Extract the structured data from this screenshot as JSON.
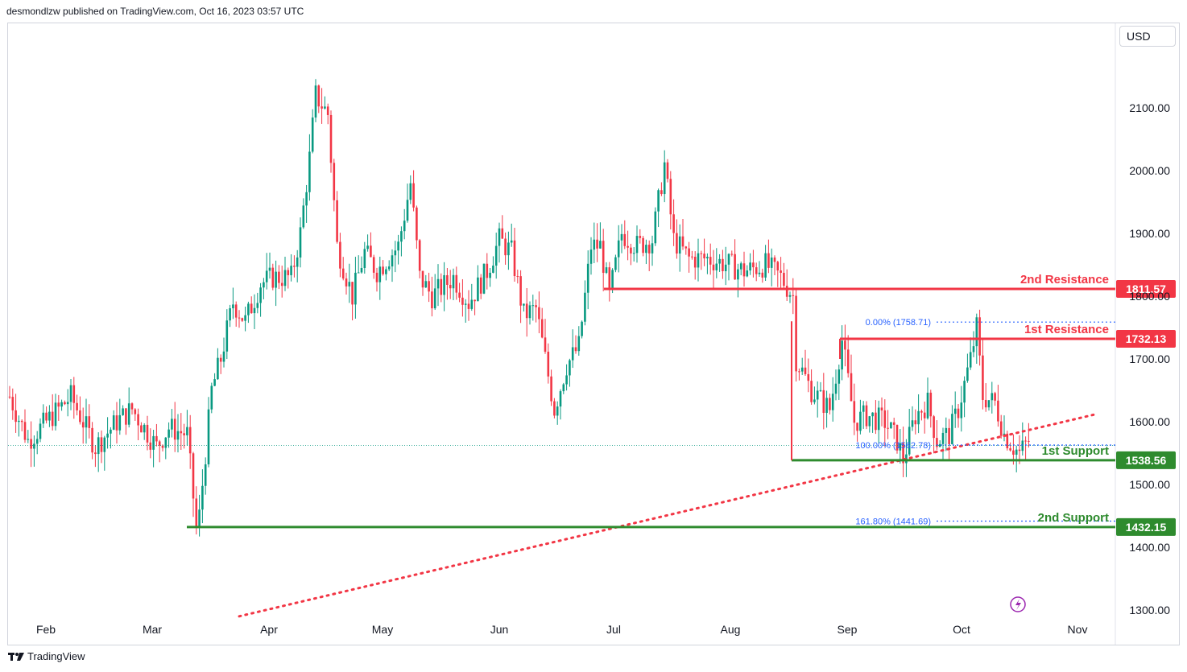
{
  "header": {
    "published": "desmondlzw published on TradingView.com, Oct 16, 2023 03:57 UTC"
  },
  "currency": "USD",
  "footer": {
    "brand": "TradingView"
  },
  "colors": {
    "up": "#089981",
    "down": "#f23645",
    "resistance": "#f23645",
    "support": "#2e8b2e",
    "fib": "#2962ff",
    "trend": "#f23645"
  },
  "chart_data": {
    "type": "candlestick",
    "title": "",
    "ylim": [
      1300,
      2200
    ],
    "y_ticks": [
      1300,
      1400,
      1500,
      1600,
      1700,
      1800,
      1900,
      2000,
      2100
    ],
    "y_tick_labels": [
      "1300.00",
      "1400.00",
      "1500.00",
      "1600.00",
      "1700.00",
      "1800.00",
      "1900.00",
      "2000.00",
      "2100.00"
    ],
    "x_labels": [
      "Feb",
      "Mar",
      "Apr",
      "May",
      "Jun",
      "Jul",
      "Aug",
      "Sep",
      "Oct",
      "Nov"
    ],
    "close_path": [
      [
        0,
        1640
      ],
      [
        6,
        1570
      ],
      [
        12,
        1600
      ],
      [
        20,
        1640
      ],
      [
        28,
        1560
      ],
      [
        35,
        1600
      ],
      [
        40,
        1620
      ],
      [
        48,
        1560
      ],
      [
        52,
        1590
      ],
      [
        58,
        1580
      ],
      [
        61,
        1430
      ],
      [
        62,
        1450
      ],
      [
        66,
        1650
      ],
      [
        69,
        1700
      ],
      [
        73,
        1790
      ],
      [
        77,
        1760
      ],
      [
        82,
        1820
      ],
      [
        86,
        1830
      ],
      [
        92,
        1830
      ],
      [
        95,
        1900
      ],
      [
        98,
        2020
      ],
      [
        100,
        2120
      ],
      [
        104,
        2090
      ],
      [
        107,
        1880
      ],
      [
        112,
        1800
      ],
      [
        116,
        1870
      ],
      [
        120,
        1840
      ],
      [
        127,
        1880
      ],
      [
        131,
        1980
      ],
      [
        134,
        1830
      ],
      [
        138,
        1800
      ],
      [
        145,
        1830
      ],
      [
        150,
        1790
      ],
      [
        156,
        1840
      ],
      [
        160,
        1890
      ],
      [
        164,
        1870
      ],
      [
        168,
        1770
      ],
      [
        172,
        1780
      ],
      [
        178,
        1620
      ],
      [
        182,
        1690
      ],
      [
        186,
        1720
      ],
      [
        190,
        1880
      ],
      [
        193,
        1880
      ],
      [
        196,
        1800
      ],
      [
        200,
        1900
      ],
      [
        205,
        1880
      ],
      [
        210,
        1890
      ],
      [
        214,
        2010
      ],
      [
        217,
        1890
      ],
      [
        222,
        1860
      ],
      [
        228,
        1860
      ],
      [
        235,
        1850
      ],
      [
        240,
        1840
      ],
      [
        247,
        1850
      ],
      [
        252,
        1830
      ],
      [
        256,
        1800
      ],
      [
        257,
        1700
      ],
      [
        262,
        1650
      ],
      [
        268,
        1620
      ],
      [
        272,
        1730
      ],
      [
        276,
        1600
      ],
      [
        280,
        1610
      ],
      [
        286,
        1600
      ],
      [
        290,
        1570
      ],
      [
        292,
        1540
      ],
      [
        296,
        1610
      ],
      [
        300,
        1630
      ],
      [
        303,
        1570
      ],
      [
        307,
        1580
      ],
      [
        310,
        1620
      ],
      [
        314,
        1700
      ],
      [
        316,
        1750
      ],
      [
        318,
        1640
      ],
      [
        322,
        1630
      ],
      [
        325,
        1580
      ],
      [
        328,
        1560
      ],
      [
        330,
        1550
      ],
      [
        333,
        1570
      ]
    ],
    "resistance_levels": [
      {
        "name": "2nd Resistance",
        "value": 1811.57,
        "label": "1811.57"
      },
      {
        "name": "1st Resistance",
        "value": 1732.13,
        "label": "1732.13"
      }
    ],
    "support_levels": [
      {
        "name": "1st Support",
        "value": 1538.56,
        "label": "1538.56"
      },
      {
        "name": "2nd Support",
        "value": 1432.15,
        "label": "1432.15"
      }
    ],
    "fibonacci": [
      {
        "label": "0.00% (1758.71)",
        "value": 1758.71
      },
      {
        "label": "100.00% (1562.78)",
        "value": 1562.78
      },
      {
        "label": "161.80% (1441.69)",
        "value": 1441.69
      }
    ],
    "trendline": {
      "style": "dotted",
      "from": [
        75,
        1290
      ],
      "to": [
        355,
        1612
      ]
    },
    "last_price": 1562
  }
}
